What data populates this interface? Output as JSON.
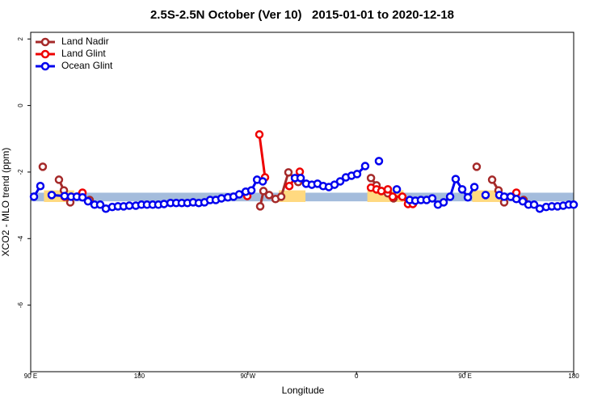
{
  "chart_data": {
    "type": "line",
    "title": "2.5S-2.5N October (Ver 10)   2015-01-01 to 2020-12-18",
    "xlabel": "Longitude",
    "ylabel": "XCO2 - MLO trend (ppm)",
    "xlim": [
      90,
      540
    ],
    "ylim": [
      -8,
      2.2
    ],
    "xticks": [
      {
        "value": 90,
        "label": "90 E"
      },
      {
        "value": 180,
        "label": "180"
      },
      {
        "value": 270,
        "label": "90 W"
      },
      {
        "value": 360,
        "label": "0"
      },
      {
        "value": 450,
        "label": "90 E"
      },
      {
        "value": 540,
        "label": "180"
      }
    ],
    "yticks": [
      2,
      0,
      -2,
      -4,
      -6
    ],
    "legend": "top-left",
    "background_bands": [
      {
        "xlim": [
          90,
          540
        ],
        "ylim": [
          -2.88,
          -2.62
        ],
        "color": "#a4bcdc"
      },
      {
        "xlim": [
          101,
          126
        ],
        "ylim": [
          -2.9,
          -2.55
        ],
        "color": "#ffd980"
      },
      {
        "xlim": [
          295.6,
          317.7
        ],
        "ylim": [
          -2.9,
          -2.55
        ],
        "color": "#ffd980"
      },
      {
        "xlim": [
          369,
          399
        ],
        "ylim": [
          -2.9,
          -2.55
        ],
        "color": "#ffd980"
      },
      {
        "xlim": [
          456,
          480
        ],
        "ylim": [
          -2.9,
          -2.55
        ],
        "color": "#ffd980"
      }
    ],
    "series": [
      {
        "name": "Land Nadir",
        "color": "#a52a2a",
        "x": [
          100.0,
          null,
          113.4,
          117.5,
          122.8,
          null,
          138.9,
          null,
          280.2,
          282.9,
          287.6,
          292.9,
          297.6,
          303.6,
          311.7,
          null,
          372,
          376.6,
          380.6,
          386,
          390.7,
          null,
          459.6,
          null,
          472.4,
          477.7,
          482.4,
          null,
          498.5
        ],
        "values": [
          -1.84,
          null,
          -2.23,
          -2.55,
          -2.91,
          null,
          -2.84,
          null,
          -3.03,
          -2.57,
          -2.69,
          -2.81,
          -2.74,
          -2.01,
          -2.3,
          null,
          -2.18,
          -2.4,
          -2.57,
          -2.64,
          -2.79,
          null,
          -1.84,
          null,
          -2.23,
          -2.55,
          -2.91,
          null,
          -2.84
        ]
      },
      {
        "name": "Land Glint",
        "color": "#ee0000",
        "x": [
          118.1,
          132.9,
          null,
          269.5,
          null,
          279.5,
          284.2,
          null,
          304.3,
          313,
          null,
          372,
          376.6,
          380.6,
          386,
          390,
          398,
          402.7,
          406.7,
          null,
          492.5
        ],
        "values": [
          -2.74,
          -2.62,
          null,
          -2.72,
          null,
          -0.87,
          -2.16,
          null,
          -2.42,
          -1.99,
          null,
          -2.47,
          -2.52,
          -2.57,
          -2.52,
          -2.74,
          -2.74,
          -2.96,
          -2.96,
          null,
          -2.62
        ]
      },
      {
        "name": "Ocean Glint",
        "color": "#0000ee",
        "x": [
          92.7,
          98,
          null,
          107.4,
          118.1,
          123.5,
          128.2,
          132.9,
          137.5,
          142.9,
          147.6,
          152.3,
          157.6,
          162.3,
          167,
          171.7,
          177.1,
          181.8,
          186.4,
          191.1,
          195.8,
          200.5,
          205.9,
          210.6,
          215.2,
          219.9,
          224.6,
          229.3,
          234,
          238.7,
          243.4,
          248.1,
          253.4,
          258.1,
          262.8,
          268.2,
          272.9,
          277.6,
          282.3,
          null,
          309,
          313.7,
          318.3,
          323,
          327.7,
          332.4,
          337.1,
          341.8,
          346.5,
          351.2,
          355.9,
          360.5,
          367.2,
          null,
          378.6,
          null,
          393.4,
          null,
          404.1,
          408.8,
          413.4,
          418.1,
          422.8,
          427.5,
          432.2,
          437.6,
          442.2,
          447.6,
          452.3,
          457.7,
          null,
          467,
          null,
          478.4,
          482.4,
          487.8,
          492.5,
          497.8,
          502.5,
          507.2,
          511.9,
          517.2,
          521.9,
          526.6,
          531.3,
          536,
          540
        ],
        "values": [
          -2.74,
          -2.42,
          null,
          -2.69,
          -2.72,
          -2.74,
          -2.74,
          -2.76,
          -2.88,
          -2.98,
          -2.98,
          -3.1,
          -3.05,
          -3.03,
          -3.03,
          -3.01,
          -3.01,
          -2.98,
          -2.98,
          -2.98,
          -2.98,
          -2.96,
          -2.93,
          -2.93,
          -2.93,
          -2.93,
          -2.91,
          -2.93,
          -2.91,
          -2.84,
          -2.84,
          -2.79,
          -2.76,
          -2.74,
          -2.67,
          -2.59,
          -2.55,
          -2.23,
          -2.28,
          null,
          -2.18,
          -2.18,
          -2.35,
          -2.38,
          -2.35,
          -2.42,
          -2.45,
          -2.38,
          -2.28,
          -2.16,
          -2.11,
          -2.06,
          -1.82,
          null,
          -1.67,
          null,
          -2.52,
          null,
          -2.84,
          -2.86,
          -2.84,
          -2.84,
          -2.79,
          -2.98,
          -2.91,
          -2.74,
          -2.21,
          -2.52,
          -2.76,
          -2.45,
          null,
          -2.69,
          null,
          -2.69,
          -2.74,
          -2.74,
          -2.81,
          -2.88,
          -2.98,
          -2.98,
          -3.1,
          -3.05,
          -3.03,
          -3.03,
          -3.01,
          -2.98,
          -2.98
        ]
      }
    ]
  }
}
